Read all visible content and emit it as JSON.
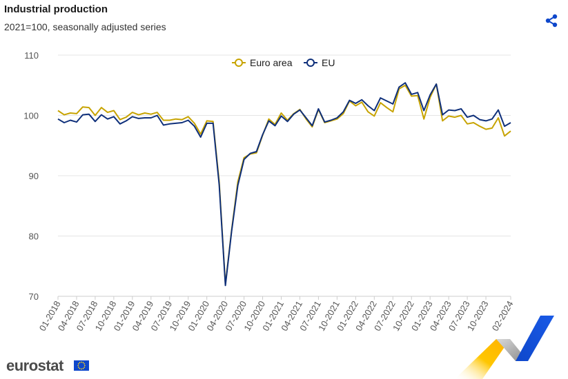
{
  "header": {
    "title": "Industrial production",
    "subtitle": "2021=100, seasonally adjusted series"
  },
  "branding": {
    "logo_text": "eurostat"
  },
  "icons": {
    "share": "share-icon",
    "flag": "eu-flag-icon"
  },
  "colors": {
    "euro_area": "#c7a300",
    "eu": "#0e2f7a",
    "grid": "#e4e4e4",
    "share": "#0e47cb"
  },
  "chart_data": {
    "type": "line",
    "ylim": [
      70,
      110
    ],
    "yticks": [
      70,
      80,
      90,
      100,
      110
    ],
    "xtick_labels": [
      "01-2018",
      "04-2018",
      "07-2018",
      "10-2018",
      "01-2019",
      "04-2019",
      "07-2019",
      "10-2019",
      "01-2020",
      "04-2020",
      "07-2020",
      "10-2020",
      "01-2021",
      "04-2021",
      "07-2021",
      "10-2021",
      "01-2022",
      "04-2022",
      "07-2022",
      "10-2022",
      "01-2023",
      "04-2023",
      "07-2023",
      "10-2023",
      "02-2024"
    ],
    "xtick_index": [
      0,
      3,
      6,
      9,
      12,
      15,
      18,
      21,
      24,
      27,
      30,
      33,
      36,
      39,
      42,
      45,
      48,
      51,
      54,
      57,
      60,
      63,
      66,
      69,
      73
    ],
    "legend": {
      "position": "top-center"
    },
    "grid": true,
    "series": [
      {
        "name": "Euro area",
        "values": [
          100.8,
          100.1,
          100.4,
          100.3,
          101.4,
          101.3,
          100.0,
          101.3,
          100.5,
          100.8,
          99.3,
          99.7,
          100.5,
          100.1,
          100.4,
          100.2,
          100.5,
          99.2,
          99.2,
          99.4,
          99.3,
          99.8,
          98.7,
          96.9,
          99.1,
          99.0,
          89.0,
          72.0,
          81.0,
          89.0,
          93.0,
          93.6,
          93.8,
          96.7,
          99.4,
          98.5,
          100.4,
          99.2,
          100.3,
          101.0,
          99.4,
          98.1,
          101.0,
          98.8,
          99.1,
          99.4,
          100.3,
          102.4,
          101.6,
          102.2,
          100.6,
          99.9,
          102.1,
          101.3,
          100.6,
          104.4,
          105.0,
          103.2,
          103.3,
          99.4,
          103.0,
          105.2,
          99.1,
          99.9,
          99.7,
          100.0,
          98.6,
          98.8,
          98.2,
          97.7,
          97.9,
          99.6,
          96.6,
          97.4
        ]
      },
      {
        "name": "EU",
        "values": [
          99.4,
          98.8,
          99.2,
          98.9,
          100.1,
          100.2,
          99.0,
          100.1,
          99.4,
          99.8,
          98.6,
          99.1,
          99.8,
          99.5,
          99.6,
          99.6,
          100.0,
          98.4,
          98.6,
          98.7,
          98.8,
          99.2,
          98.2,
          96.4,
          98.7,
          98.7,
          88.5,
          71.8,
          80.8,
          88.4,
          92.7,
          93.7,
          94.0,
          96.8,
          99.1,
          98.3,
          99.9,
          99.0,
          100.2,
          100.9,
          99.6,
          98.3,
          101.1,
          98.9,
          99.2,
          99.6,
          100.6,
          102.5,
          102.0,
          102.6,
          101.6,
          100.8,
          102.9,
          102.4,
          101.9,
          104.7,
          105.4,
          103.5,
          103.8,
          100.8,
          103.4,
          105.2,
          100.1,
          100.9,
          100.8,
          101.1,
          99.7,
          100.0,
          99.3,
          99.1,
          99.4,
          100.9,
          98.2,
          98.8
        ]
      }
    ]
  }
}
